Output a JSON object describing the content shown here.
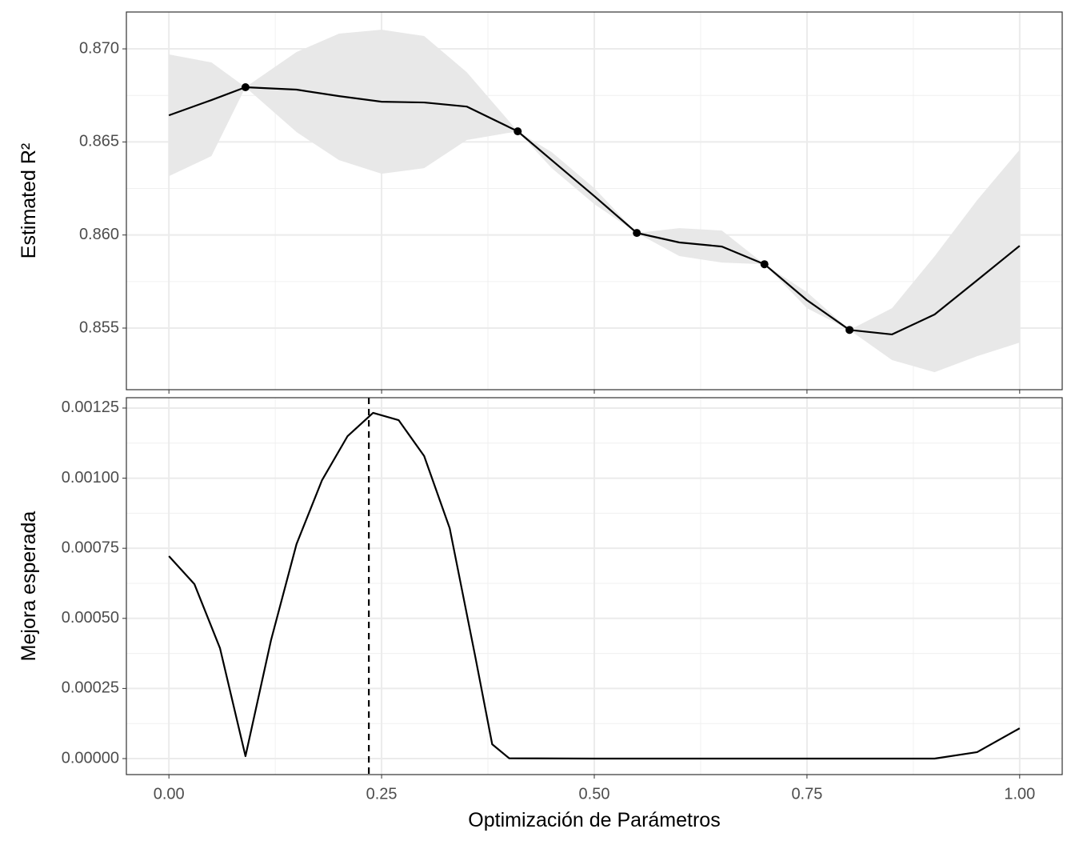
{
  "chart_data": [
    {
      "type": "line",
      "ylabel": "Estimated R²",
      "x": [
        0,
        0.05,
        0.09,
        0.15,
        0.2,
        0.25,
        0.3,
        0.35,
        0.41,
        0.45,
        0.5,
        0.55,
        0.6,
        0.65,
        0.7,
        0.75,
        0.8,
        0.85,
        0.9,
        0.95,
        1.0
      ],
      "values": [
        0.86643,
        0.86725,
        0.86794,
        0.86781,
        0.86746,
        0.86716,
        0.86712,
        0.8669,
        0.86557,
        0.86402,
        0.86209,
        0.86011,
        0.8596,
        0.85938,
        0.85843,
        0.8565,
        0.8549,
        0.85466,
        0.85573,
        0.85757,
        0.85942
      ],
      "upper": [
        0.8697,
        0.86927,
        0.86794,
        0.86983,
        0.87082,
        0.87103,
        0.87069,
        0.86875,
        0.86557,
        0.86445,
        0.86252,
        0.86011,
        0.86037,
        0.86024,
        0.85843,
        0.85693,
        0.8549,
        0.85607,
        0.85886,
        0.86187,
        0.86458
      ],
      "lower": [
        0.86316,
        0.86424,
        0.86794,
        0.86553,
        0.86402,
        0.86329,
        0.86359,
        0.8651,
        0.86557,
        0.86359,
        0.86166,
        0.86011,
        0.85887,
        0.85852,
        0.85843,
        0.85607,
        0.8549,
        0.85328,
        0.85263,
        0.85349,
        0.85422
      ],
      "points": {
        "x": [
          0.09,
          0.41,
          0.55,
          0.7,
          0.8
        ],
        "y": [
          0.86794,
          0.86557,
          0.86011,
          0.85843,
          0.8549
        ]
      },
      "color": "#000000",
      "band_color": "#e8e8e8",
      "xlim": [
        -0.05,
        1.05
      ],
      "ylim": [
        0.85169,
        0.87198
      ],
      "xticks": [
        0,
        0.25,
        0.5,
        0.75,
        1
      ],
      "yticks": [
        {
          "value": 0.855,
          "label": "0.855"
        },
        {
          "value": 0.86,
          "label": "0.860"
        },
        {
          "value": 0.865,
          "label": "0.865"
        },
        {
          "value": 0.87,
          "label": "0.870"
        }
      ],
      "grid": true
    },
    {
      "type": "line",
      "xlabel": "Optimización de Parámetros",
      "ylabel": "Mejora esperada",
      "x": [
        0,
        0.03,
        0.06,
        0.09,
        0.12,
        0.15,
        0.18,
        0.21,
        0.24,
        0.27,
        0.3,
        0.33,
        0.36,
        0.38,
        0.4,
        0.5,
        0.6,
        0.7,
        0.8,
        0.9,
        0.95,
        1.0
      ],
      "values": [
        0.000722,
        0.000622,
        0.000394,
        8.6e-06,
        0.000422,
        0.000765,
        0.000993,
        0.00115,
        0.001233,
        0.001207,
        0.001079,
        0.000822,
        0.000365,
        5.1e-05,
        1e-06,
        0,
        0,
        0,
        0,
        0,
        2.3e-05,
        0.000108
      ],
      "vline": 0.235,
      "color": "#000000",
      "xlim": [
        -0.05,
        1.05
      ],
      "ylim": [
        -5.71e-05,
        0.001287
      ],
      "xticks": [
        {
          "value": 0,
          "label": "0.00"
        },
        {
          "value": 0.25,
          "label": "0.25"
        },
        {
          "value": 0.5,
          "label": "0.50"
        },
        {
          "value": 0.75,
          "label": "0.75"
        },
        {
          "value": 1,
          "label": "1.00"
        }
      ],
      "yticks": [
        {
          "value": 0,
          "label": "0.00000"
        },
        {
          "value": 0.00025,
          "label": "0.00025"
        },
        {
          "value": 0.0005,
          "label": "0.00050"
        },
        {
          "value": 0.00075,
          "label": "0.00075"
        },
        {
          "value": 0.001,
          "label": "0.00100"
        },
        {
          "value": 0.00125,
          "label": "0.00125"
        }
      ],
      "grid": true
    }
  ]
}
